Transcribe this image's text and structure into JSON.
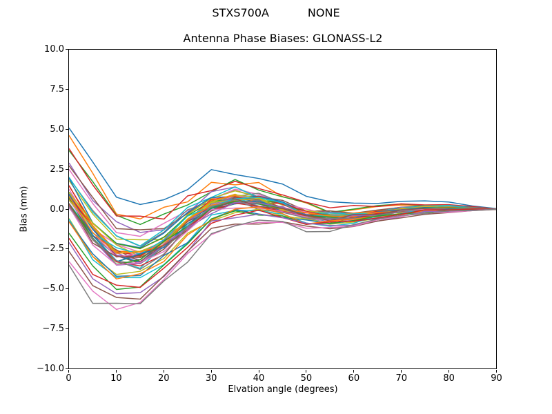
{
  "figure": {
    "suptitle": "STXS700A           NONE",
    "background": "#ffffff"
  },
  "chart_data": {
    "type": "line",
    "title": "Antenna Phase Biases: GLONASS-L2",
    "xlabel": "Elvation angle (degrees)",
    "ylabel": "Bias (mm)",
    "xlim": [
      0,
      90
    ],
    "ylim": [
      -10.0,
      10.0
    ],
    "grid": false,
    "legend": "none",
    "xticks": [
      0,
      10,
      20,
      30,
      40,
      50,
      60,
      70,
      80,
      90
    ],
    "xticklabels": [
      "0",
      "10",
      "20",
      "30",
      "40",
      "50",
      "60",
      "70",
      "80",
      "90"
    ],
    "yticks": [
      10.0,
      7.5,
      5.0,
      2.5,
      0.0,
      -2.5,
      -5.0,
      -7.5,
      -10.0
    ],
    "yticklabels": [
      "10.0",
      "7.5",
      "5.0",
      "2.5",
      "0.0",
      "−2.5",
      "−5.0",
      "−7.5",
      "−10.0"
    ],
    "x": [
      0,
      5,
      10,
      15,
      20,
      25,
      30,
      35,
      40,
      45,
      50,
      55,
      60,
      65,
      70,
      75,
      80,
      85,
      90
    ],
    "n_series": 48,
    "envelope_top": [
      5.15,
      2.9,
      0.8,
      0.15,
      0.5,
      1.25,
      1.95,
      2.15,
      1.8,
      1.2,
      0.55,
      0.2,
      0.25,
      0.3,
      0.4,
      0.42,
      0.32,
      0.15,
      0.02
    ],
    "envelope_bottom": [
      -3.75,
      -5.9,
      -6.6,
      -6.15,
      -4.95,
      -3.3,
      -1.7,
      -1.0,
      -1.0,
      -1.15,
      -1.4,
      -1.45,
      -1.2,
      -0.85,
      -0.55,
      -0.35,
      -0.2,
      -0.1,
      -0.02
    ],
    "spread_jitter": [
      0.6,
      0.7,
      0.8,
      0.8,
      0.75,
      0.7,
      0.6,
      0.55,
      0.5,
      0.45,
      0.4,
      0.38,
      0.33,
      0.28,
      0.22,
      0.18,
      0.14,
      0.08,
      0.02
    ],
    "palette": [
      "#1f77b4",
      "#ff7f0e",
      "#2ca02c",
      "#d62728",
      "#9467bd",
      "#8c564b",
      "#e377c2",
      "#7f7f7f",
      "#bcbd22",
      "#17becf"
    ],
    "line_width": 1.5,
    "axis_color": "#000000"
  }
}
